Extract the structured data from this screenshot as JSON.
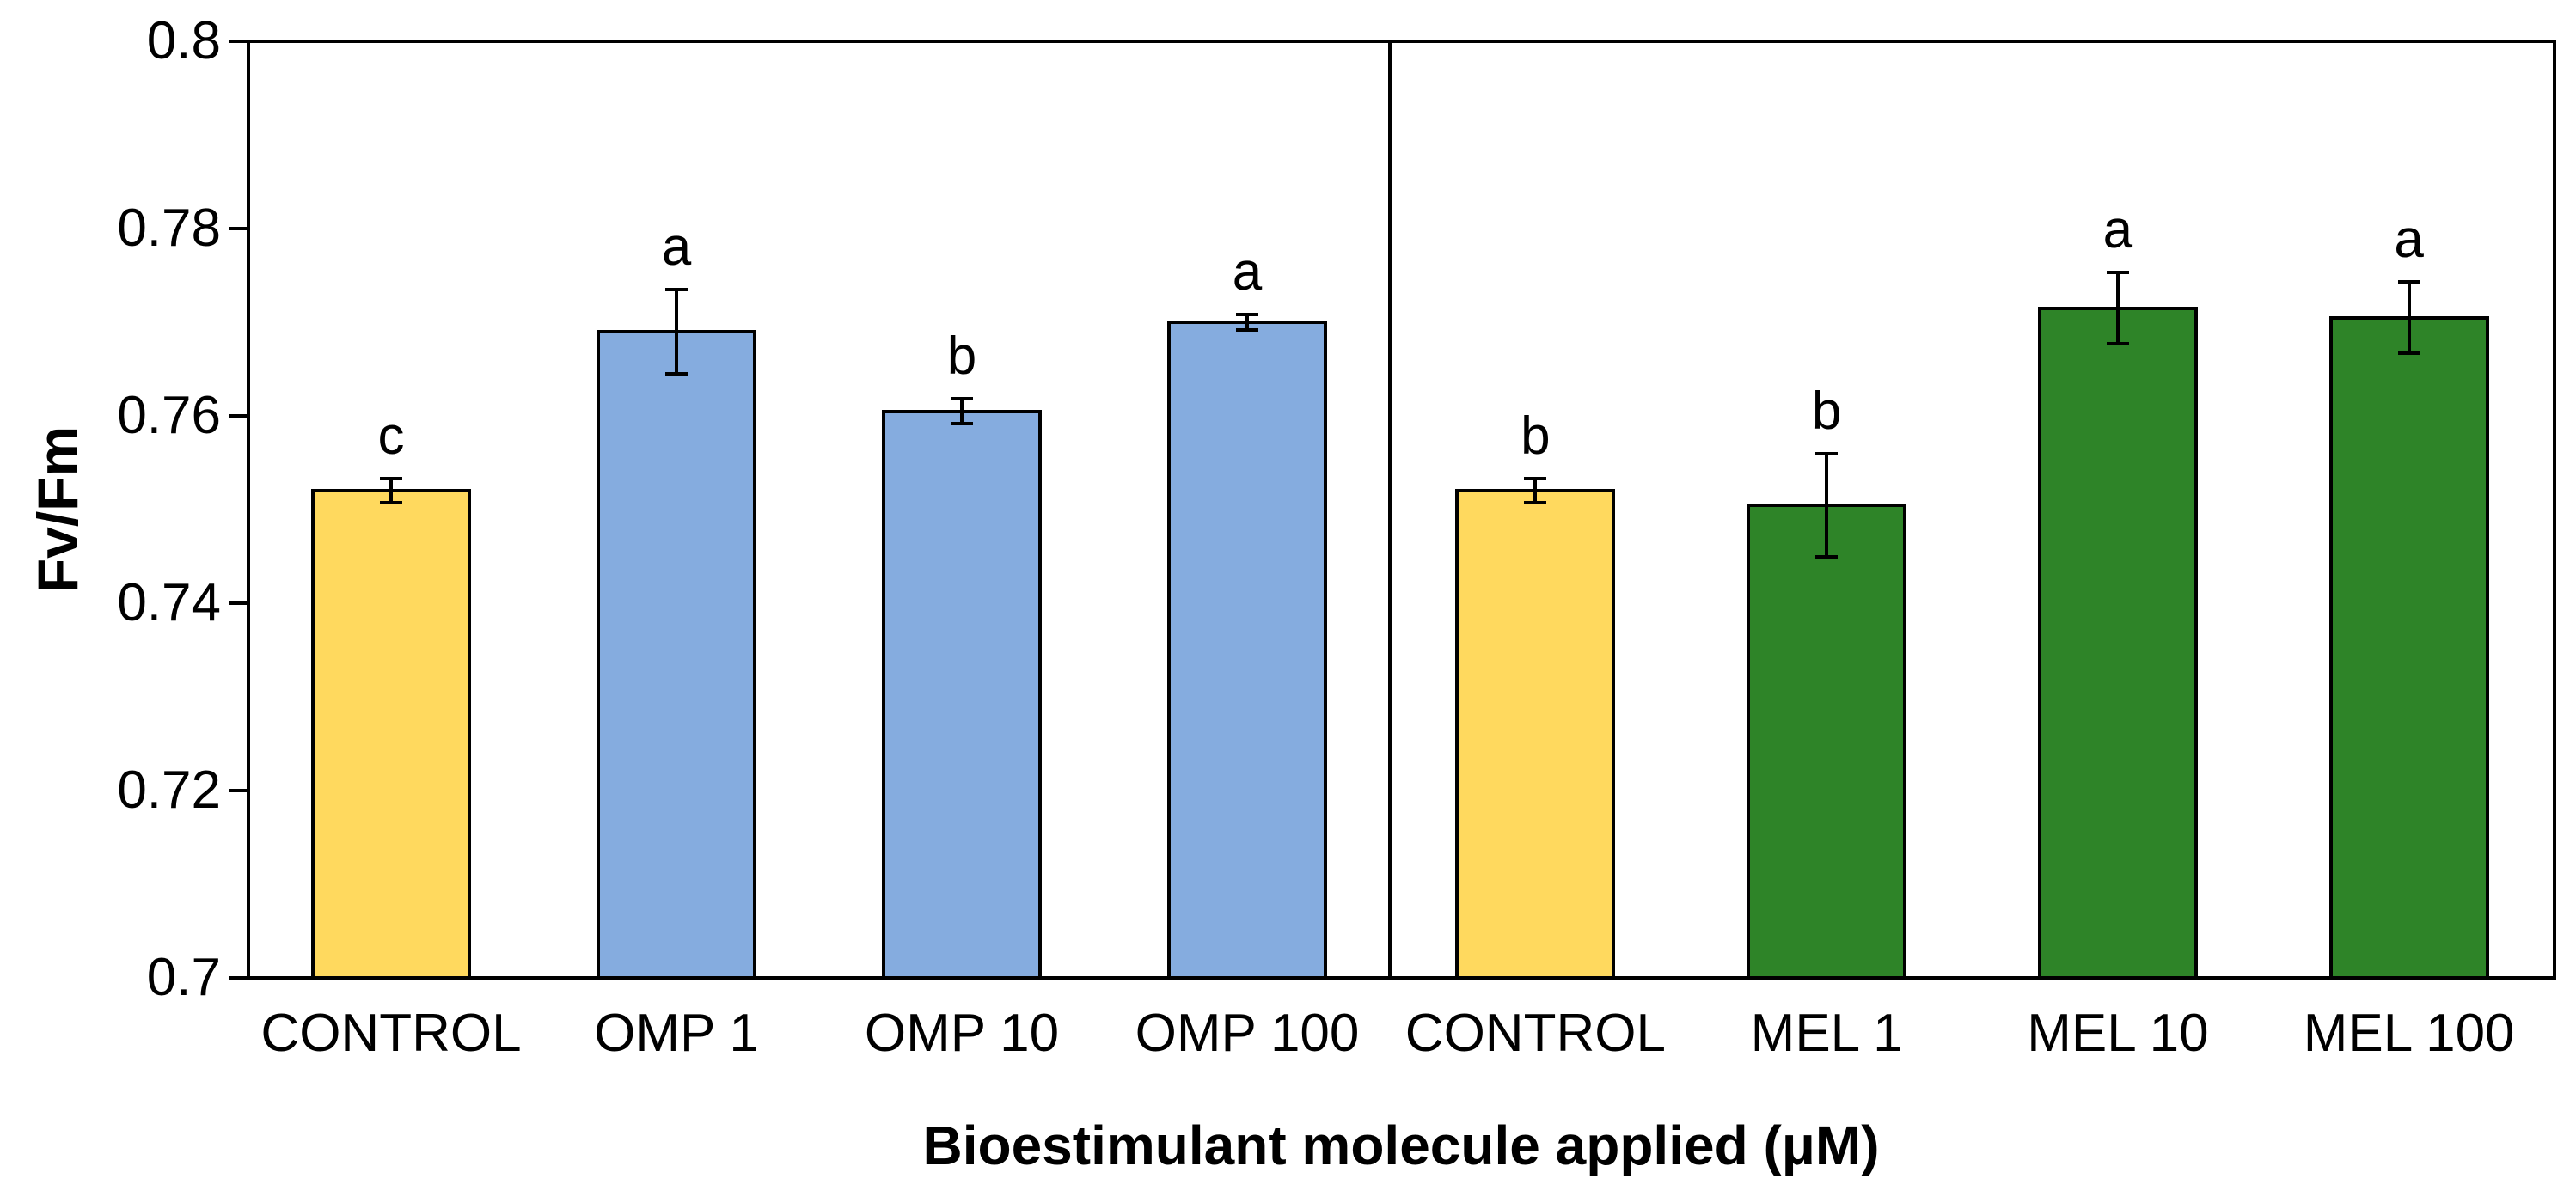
{
  "chart_data": {
    "type": "bar",
    "title": "",
    "ylabel": "Fv/Fm",
    "xlabel": "Bioestimulant molecule applied (μM)",
    "ylim": [
      0.7,
      0.8
    ],
    "yticks": [
      0.7,
      0.72,
      0.74,
      0.76,
      0.78,
      0.8
    ],
    "ytick_labels": [
      "0.7",
      "0.72",
      "0.74",
      "0.76",
      "0.78",
      "0.8"
    ],
    "grid": false,
    "legend": "none",
    "panels": [
      {
        "name": "OMP",
        "categories": [
          "CONTROL",
          "OMP 1",
          "OMP 10",
          "OMP 100"
        ]
      },
      {
        "name": "MEL",
        "categories": [
          "CONTROL",
          "MEL 1",
          "MEL 10",
          "MEL 100"
        ]
      }
    ],
    "categories": [
      "CONTROL",
      "OMP 1",
      "OMP 10",
      "OMP 100",
      "CONTROL",
      "MEL 1",
      "MEL 10",
      "MEL 100"
    ],
    "bars": [
      {
        "category": "CONTROL",
        "value": 0.752,
        "error": 0.0013,
        "sig_letter": "c",
        "color": "#FFD95E"
      },
      {
        "category": "OMP 1",
        "value": 0.769,
        "error": 0.0045,
        "sig_letter": "a",
        "color": "#85ACDF"
      },
      {
        "category": "OMP 10",
        "value": 0.7605,
        "error": 0.0013,
        "sig_letter": "b",
        "color": "#85ACDF"
      },
      {
        "category": "OMP 100",
        "value": 0.77,
        "error": 0.0008,
        "sig_letter": "a",
        "color": "#85ACDF"
      },
      {
        "category": "CONTROL",
        "value": 0.752,
        "error": 0.0013,
        "sig_letter": "b",
        "color": "#FFD95E"
      },
      {
        "category": "MEL 1",
        "value": 0.7505,
        "error": 0.0055,
        "sig_letter": "b",
        "color": "#2E8428"
      },
      {
        "category": "MEL 10",
        "value": 0.7715,
        "error": 0.0038,
        "sig_letter": "a",
        "color": "#2E8428"
      },
      {
        "category": "MEL 100",
        "value": 0.7705,
        "error": 0.0038,
        "sig_letter": "a",
        "color": "#2E8428"
      }
    ],
    "axis_color": "#000000",
    "background": "#FFFFFF"
  }
}
